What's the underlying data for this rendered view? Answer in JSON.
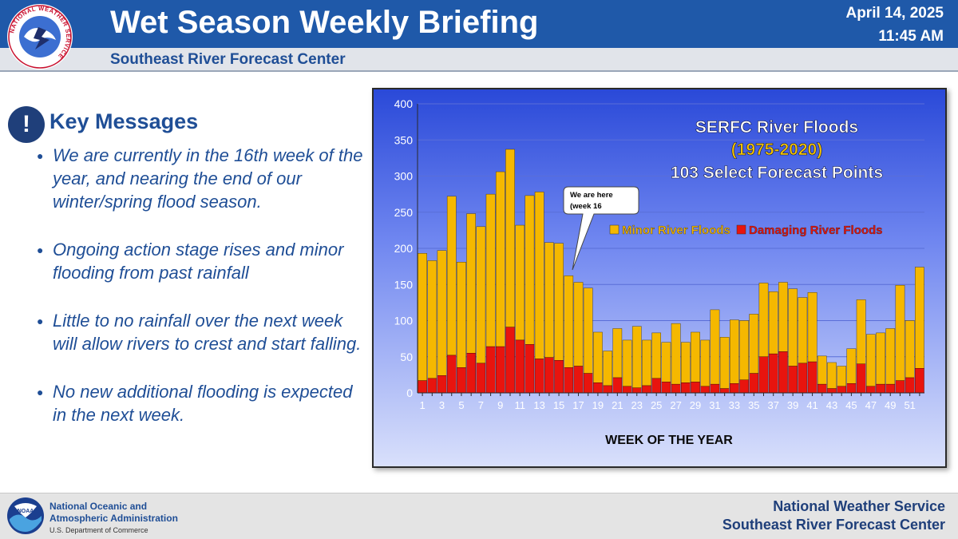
{
  "header": {
    "title": "Wet Season Weekly Briefing",
    "subtitle": "Southeast River Forecast Center",
    "date": "April 14, 2025",
    "time": "11:45 AM",
    "logo_text": "NATIONAL WEATHER SERVICE"
  },
  "key_messages": {
    "icon": "!",
    "title": "Key Messages",
    "bullets": [
      "We are currently in the 16th week of the year, and nearing the end of our winter/spring flood season.",
      "Ongoing action stage rises and minor flooding from past rainfall",
      "Little to no rainfall over the next week will allow rivers to crest and start falling.",
      "No new additional flooding is expected in the next week."
    ]
  },
  "chart_data": {
    "type": "bar",
    "stacked": true,
    "title": "SERFC River Floods",
    "subtitle": "(1975-2020)",
    "subtitle2": "103 Select Forecast Points",
    "xlabel": "WEEK OF THE YEAR",
    "ylabel": "",
    "ylim": [
      0,
      400
    ],
    "yticks": [
      0,
      50,
      100,
      150,
      200,
      250,
      300,
      350,
      400
    ],
    "x": [
      1,
      2,
      3,
      4,
      5,
      6,
      7,
      8,
      9,
      10,
      11,
      12,
      13,
      14,
      15,
      16,
      17,
      18,
      19,
      20,
      21,
      22,
      23,
      24,
      25,
      26,
      27,
      28,
      29,
      30,
      31,
      32,
      33,
      34,
      35,
      36,
      37,
      38,
      39,
      40,
      41,
      42,
      43,
      44,
      45,
      46,
      47,
      48,
      49,
      50,
      51,
      52
    ],
    "xtick_labels": [
      "1",
      "3",
      "5",
      "7",
      "9",
      "11",
      "13",
      "15",
      "17",
      "19",
      "21",
      "23",
      "25",
      "27",
      "29",
      "31",
      "33",
      "35",
      "37",
      "39",
      "41",
      "43",
      "45",
      "47",
      "49",
      "51"
    ],
    "totals": [
      193,
      183,
      197,
      272,
      181,
      248,
      230,
      275,
      306,
      337,
      232,
      273,
      278,
      208,
      207,
      162,
      153,
      145,
      84,
      58,
      89,
      73,
      92,
      73,
      83,
      70,
      96,
      70,
      84,
      73,
      115,
      77,
      101,
      100,
      109,
      152,
      140,
      153,
      144,
      132,
      139,
      51,
      42,
      37,
      61,
      129,
      81,
      83,
      89,
      149,
      100,
      174
    ],
    "series": [
      {
        "name": "Damaging River Floods",
        "color": "#e8140e",
        "values": [
          17,
          20,
          24,
          52,
          35,
          55,
          41,
          64,
          64,
          91,
          73,
          67,
          47,
          49,
          45,
          35,
          37,
          27,
          14,
          10,
          21,
          9,
          7,
          10,
          20,
          15,
          12,
          14,
          15,
          9,
          12,
          6,
          13,
          18,
          27,
          50,
          54,
          57,
          37,
          41,
          43,
          12,
          6,
          9,
          13,
          40,
          9,
          12,
          12,
          17,
          21,
          34
        ]
      },
      {
        "name": "Minor River Floods",
        "color": "#f5b800",
        "values": [
          176,
          163,
          173,
          220,
          146,
          193,
          189,
          211,
          242,
          246,
          159,
          206,
          231,
          159,
          162,
          127,
          116,
          118,
          70,
          48,
          68,
          64,
          85,
          63,
          63,
          55,
          84,
          56,
          69,
          64,
          103,
          71,
          88,
          82,
          82,
          102,
          86,
          96,
          107,
          91,
          96,
          39,
          36,
          28,
          48,
          89,
          72,
          71,
          77,
          132,
          79,
          140
        ]
      }
    ],
    "annotation": {
      "text1": "We are here",
      "text2": "(week 16",
      "week": 16
    },
    "legend_placement": "right",
    "grid": true
  },
  "footer": {
    "noaa_name_line1": "National Oceanic and",
    "noaa_name_line2": "Atmospheric Administration",
    "noaa_dept": "U.S. Department of Commerce",
    "noaa_logo_text": "NOAA",
    "right_line1": "National Weather Service",
    "right_line2": "Southeast River Forecast Center"
  },
  "colors": {
    "brand_blue": "#1f59a9",
    "text_blue": "#1f4e96",
    "minor": "#f5b800",
    "damaging": "#e8140e"
  }
}
